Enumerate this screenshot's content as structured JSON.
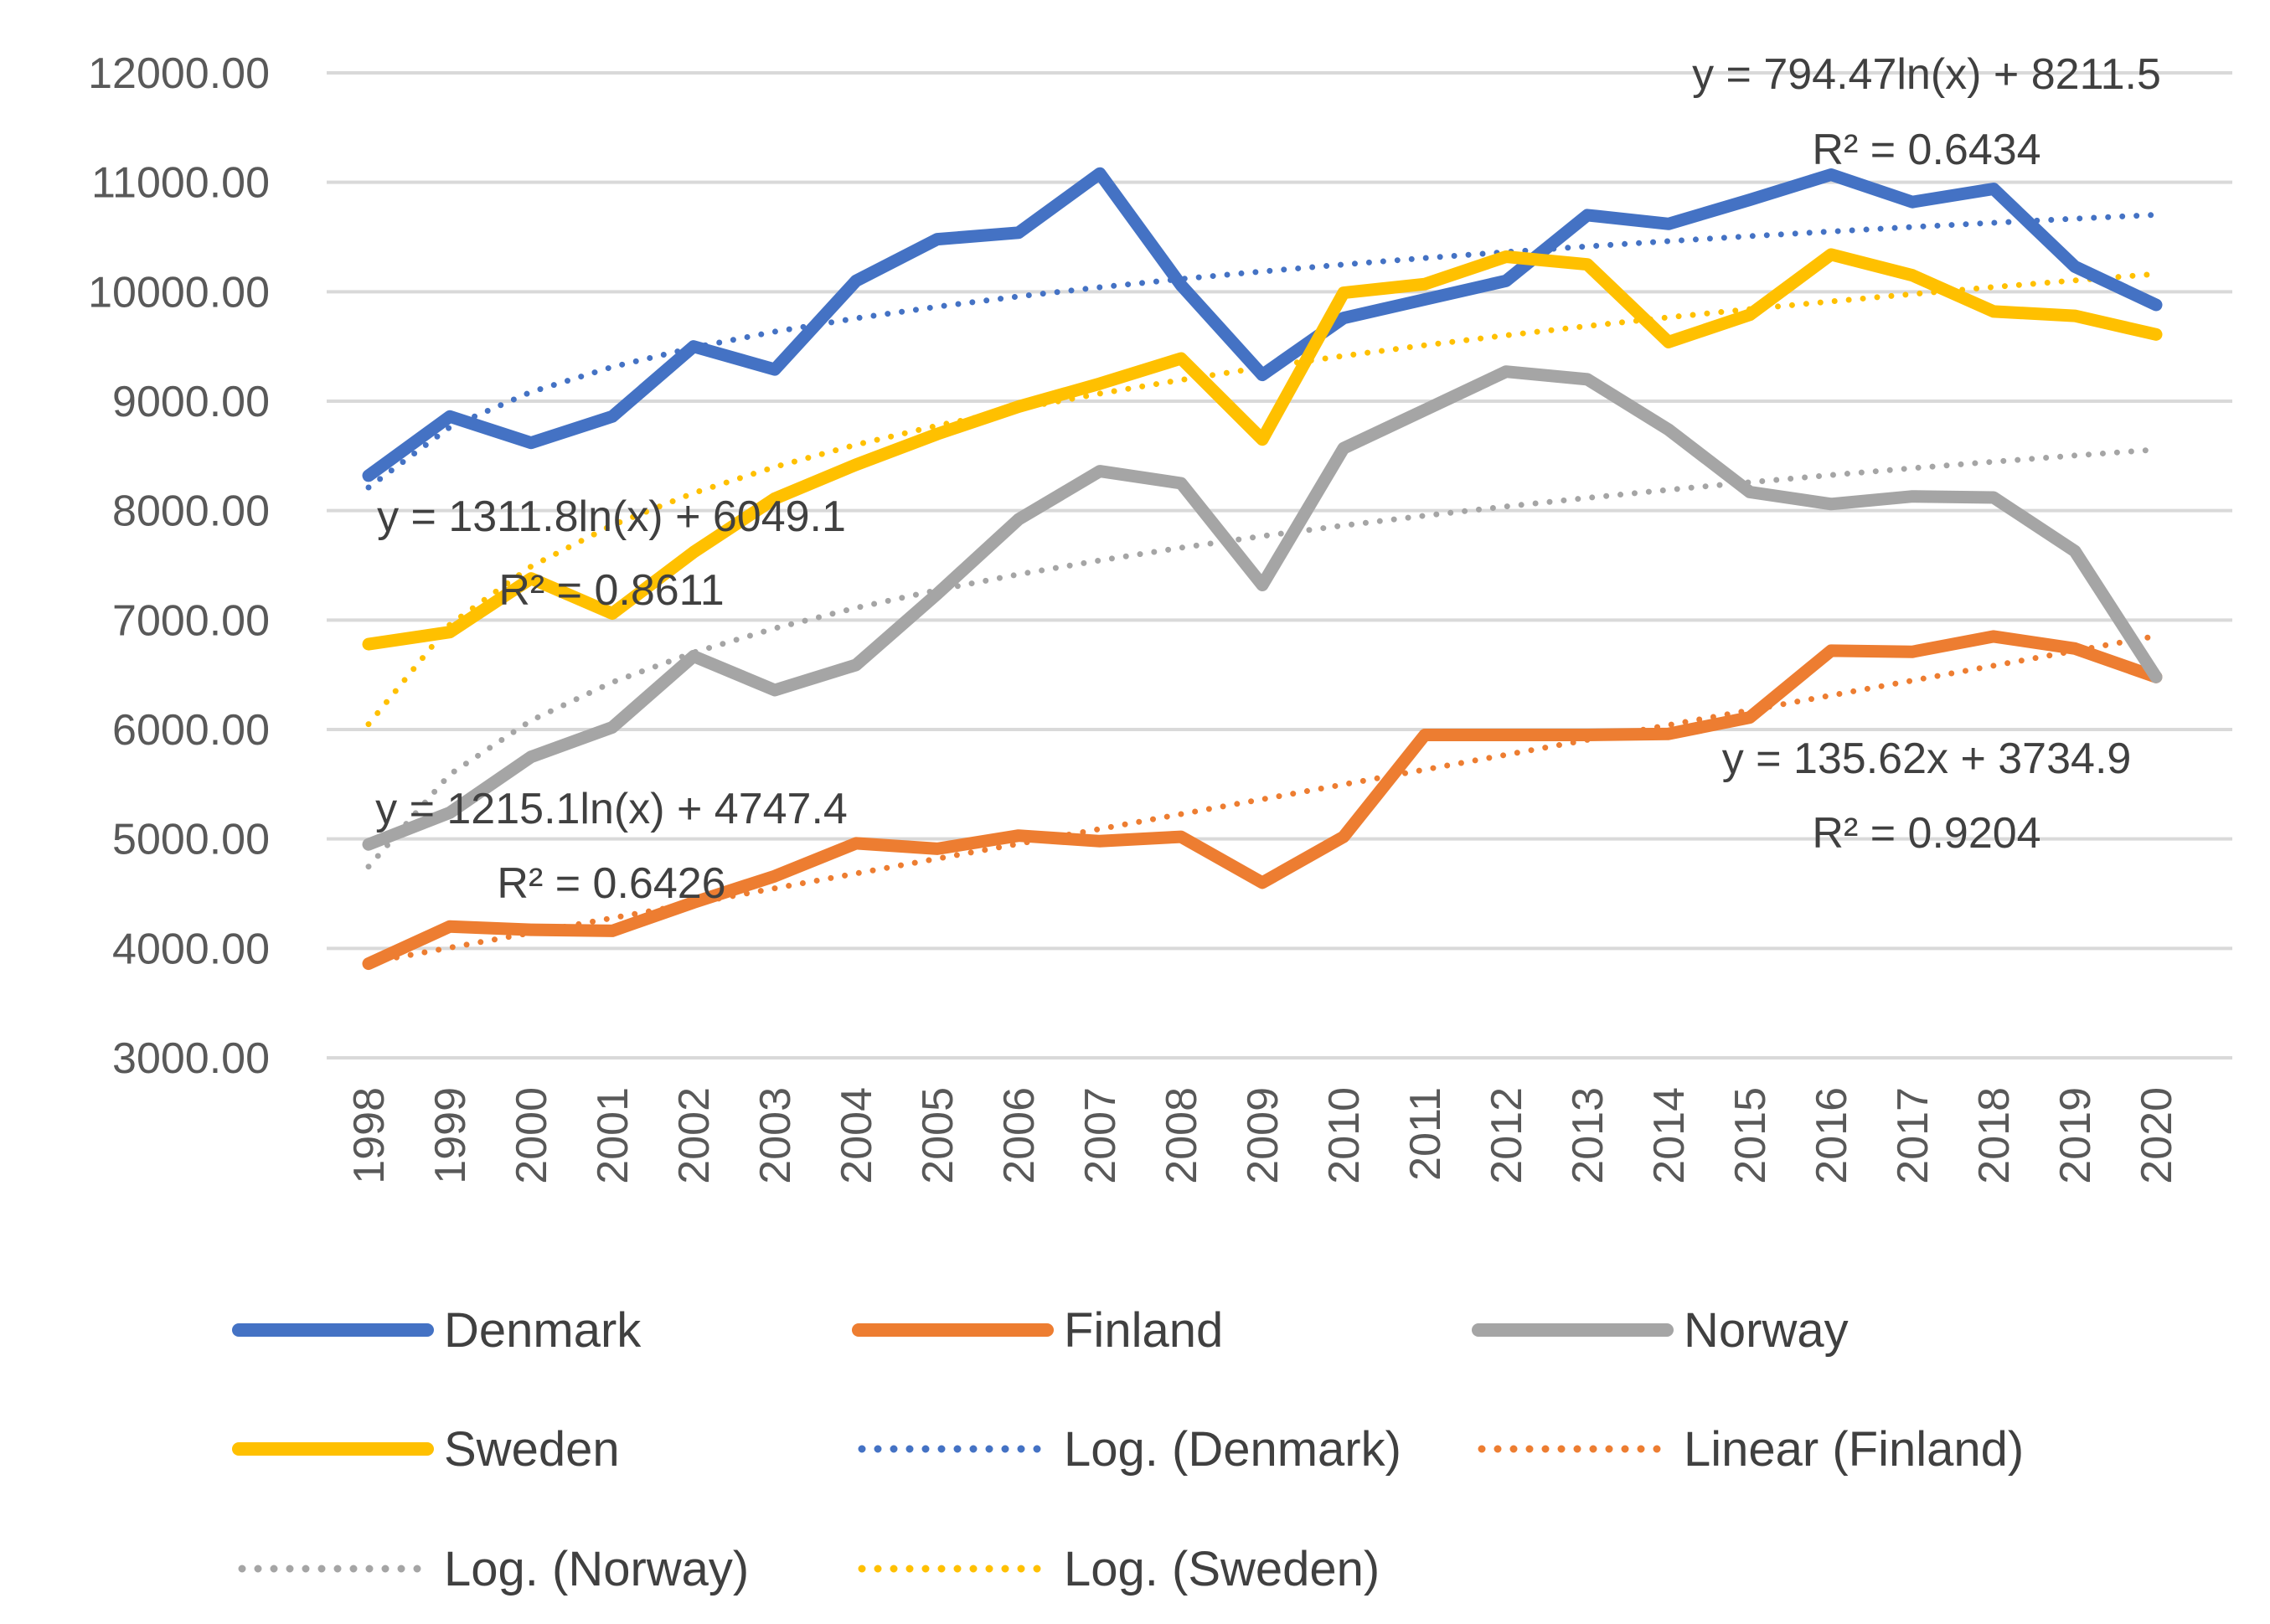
{
  "chart_data": {
    "type": "line",
    "title": "",
    "xlabel": "",
    "ylabel": "",
    "ylim": [
      3000,
      12000
    ],
    "y_ticks": [
      "3000.00",
      "4000.00",
      "5000.00",
      "6000.00",
      "7000.00",
      "8000.00",
      "9000.00",
      "10000.00",
      "11000.00",
      "12000.00"
    ],
    "grid": true,
    "legend_position": "bottom",
    "categories": [
      "1998",
      "1999",
      "2000",
      "2001",
      "2002",
      "2003",
      "2004",
      "2005",
      "2006",
      "2007",
      "2008",
      "2009",
      "2010",
      "2011",
      "2012",
      "2013",
      "2014",
      "2015",
      "2016",
      "2017",
      "2018",
      "2019",
      "2020"
    ],
    "series": [
      {
        "name": "Denmark",
        "color": "#4472C4",
        "values": [
          8320,
          8860,
          8620,
          8860,
          9500,
          9290,
          10100,
          10480,
          10540,
          11080,
          10060,
          9240,
          9760,
          9930,
          10100,
          10700,
          10620,
          10840,
          11070,
          10820,
          10940,
          10230,
          9880
        ]
      },
      {
        "name": "Finland",
        "color": "#ED7D31",
        "values": [
          3860,
          4200,
          4170,
          4160,
          4420,
          4660,
          4960,
          4910,
          5030,
          4980,
          5020,
          4600,
          5020,
          5950,
          5950,
          5950,
          5960,
          6110,
          6720,
          6710,
          6850,
          6740,
          6480
        ]
      },
      {
        "name": "Norway",
        "color": "#A5A5A5",
        "values": [
          4950,
          5240,
          5750,
          6020,
          6670,
          6360,
          6590,
          7240,
          7920,
          8360,
          8250,
          7320,
          8570,
          8920,
          9270,
          9200,
          8740,
          8170,
          8060,
          8130,
          8120,
          7630,
          6480
        ]
      },
      {
        "name": "Sweden",
        "color": "#FFC000",
        "values": [
          6780,
          6890,
          7380,
          7060,
          7620,
          8110,
          8420,
          8700,
          8950,
          9160,
          9390,
          8650,
          9990,
          10070,
          10320,
          10250,
          9540,
          9790,
          10340,
          10150,
          9820,
          9780,
          9610
        ]
      }
    ],
    "trendlines": [
      {
        "name": "Log. (Denmark)",
        "series": "Denmark",
        "type": "log",
        "a": 794.47,
        "b": 8211.5,
        "color": "#4472C4",
        "equation": "y = 794.47ln(x) + 8211.5",
        "r2": "R² = 0.6434"
      },
      {
        "name": "Linear (Finland)",
        "series": "Finland",
        "type": "linear",
        "a": 135.62,
        "b": 3734.9,
        "color": "#ED7D31",
        "equation": "y = 135.62x + 3734.9",
        "r2": "R² = 0.9204"
      },
      {
        "name": "Log. (Norway)",
        "series": "Norway",
        "type": "log",
        "a": 1215.1,
        "b": 4747.4,
        "color": "#A5A5A5",
        "equation": "y = 1215.1ln(x) + 4747.4",
        "r2": "R² = 0.6426"
      },
      {
        "name": "Log. (Sweden)",
        "series": "Sweden",
        "type": "log",
        "a": 1311.8,
        "b": 6049.1,
        "color": "#FFC000",
        "equation": "y = 1311.8ln(x) + 6049.1",
        "r2": "R² = 0.8611"
      }
    ]
  }
}
